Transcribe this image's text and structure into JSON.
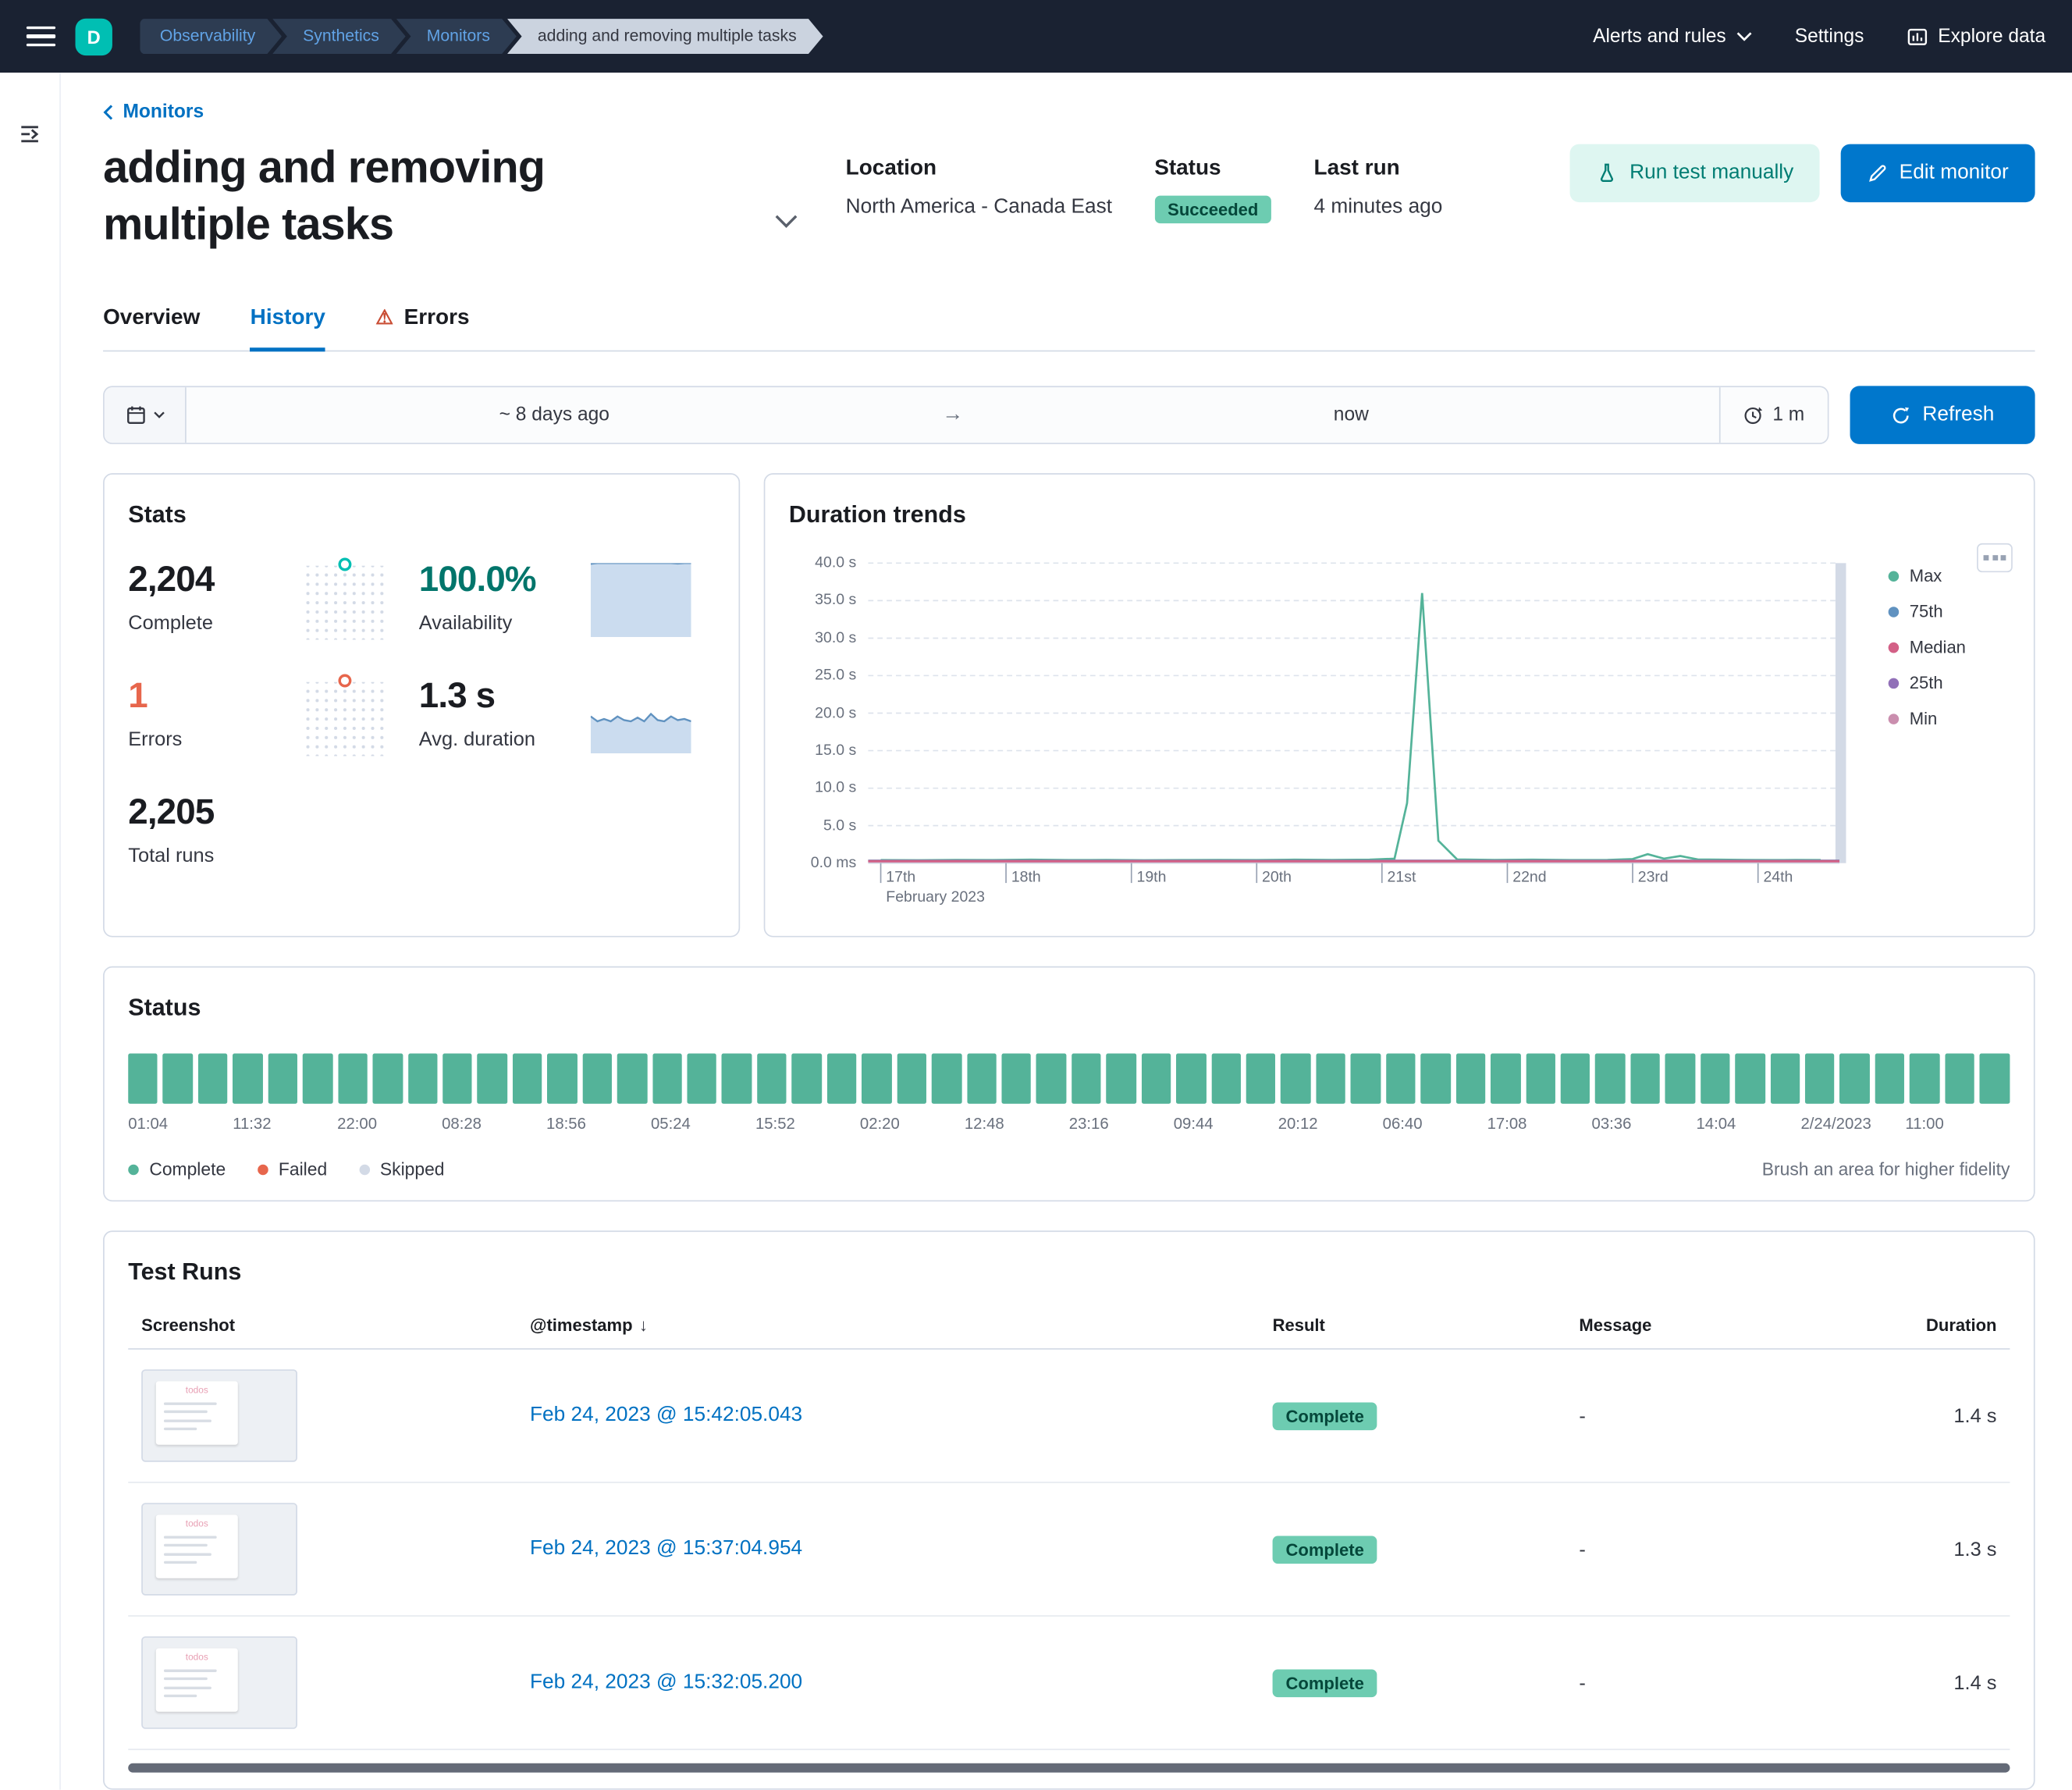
{
  "header": {
    "space_initial": "D",
    "breadcrumbs": [
      "Observability",
      "Synthetics",
      "Monitors",
      "adding and removing multiple tasks"
    ],
    "alerts_menu": "Alerts and rules",
    "settings": "Settings",
    "explore_data": "Explore data"
  },
  "monitor": {
    "back_link": "Monitors",
    "title": "adding and removing multiple tasks",
    "location_label": "Location",
    "location_value": "North America - Canada East",
    "status_label": "Status",
    "status_value": "Succeeded",
    "last_run_label": "Last run",
    "last_run_value": "4 minutes ago",
    "run_test_button": "Run test manually",
    "edit_button": "Edit monitor"
  },
  "tabs": [
    {
      "label": "Overview",
      "active": false,
      "warning": false
    },
    {
      "label": "History",
      "active": true,
      "warning": false
    },
    {
      "label": "Errors",
      "active": false,
      "warning": true
    }
  ],
  "datepicker": {
    "start": "~ 8 days ago",
    "end": "now",
    "refresh_interval": "1 m",
    "refresh_button": "Refresh"
  },
  "stats": {
    "title": "Stats",
    "complete": {
      "value": "2,204",
      "label": "Complete"
    },
    "availability": {
      "value": "100.0%",
      "label": "Availability"
    },
    "errors": {
      "value": "1",
      "label": "Errors"
    },
    "avg_duration": {
      "value": "1.3 s",
      "label": "Avg. duration"
    },
    "total_runs": {
      "value": "2,205",
      "label": "Total runs"
    }
  },
  "chart_data": [
    {
      "type": "line",
      "title": "Duration trends",
      "unit": "seconds",
      "ylim": [
        0,
        40
      ],
      "y_ticks": [
        "40.0 s",
        "35.0 s",
        "30.0 s",
        "25.0 s",
        "20.0 s",
        "15.0 s",
        "10.0 s",
        "5.0 s",
        "0.0 ms"
      ],
      "xlim": [
        16.9,
        24.65
      ],
      "x_ticks": [
        {
          "label": "17th",
          "day": 17
        },
        {
          "label": "18th",
          "day": 18
        },
        {
          "label": "19th",
          "day": 19
        },
        {
          "label": "20th",
          "day": 20
        },
        {
          "label": "21st",
          "day": 21
        },
        {
          "label": "22nd",
          "day": 22
        },
        {
          "label": "23rd",
          "day": 23
        },
        {
          "label": "24th",
          "day": 24
        }
      ],
      "x_subtitle": "February 2023",
      "legend_position": "right",
      "series": [
        {
          "name": "Max",
          "color": "#54B399",
          "x": [
            17.0,
            17.3,
            17.6,
            17.9,
            18.2,
            18.5,
            18.8,
            19.1,
            19.4,
            19.7,
            20.0,
            20.3,
            20.6,
            20.9,
            21.1,
            21.2,
            21.32,
            21.45,
            21.6,
            21.9,
            22.2,
            22.5,
            22.8,
            23.0,
            23.12,
            23.25,
            23.38,
            23.52,
            23.7,
            23.9,
            24.1,
            24.3,
            24.5
          ],
          "y": [
            0.4,
            0.38,
            0.42,
            0.4,
            0.45,
            0.4,
            0.42,
            0.38,
            0.4,
            0.42,
            0.4,
            0.45,
            0.42,
            0.46,
            0.6,
            8,
            36,
            3,
            0.5,
            0.42,
            0.46,
            0.4,
            0.42,
            0.55,
            1.2,
            0.6,
            0.95,
            0.5,
            0.45,
            0.42,
            0.4,
            0.42,
            0.4
          ]
        },
        {
          "name": "75th",
          "color": "#6092C0",
          "const": 0.33
        },
        {
          "name": "Median",
          "color": "#D36086",
          "const": 0.28
        },
        {
          "name": "25th",
          "color": "#9170B8",
          "const": 0.24
        },
        {
          "name": "Min",
          "color": "#CA8EAE",
          "const": 0.2
        }
      ]
    },
    {
      "type": "bar",
      "title": "Status",
      "description": "Monitor check status buckets over ~8 days; every bucket is complete (green)",
      "bar_count": 54,
      "bar_status": "complete",
      "categories": [
        "01:04",
        "11:32",
        "22:00",
        "08:28",
        "18:56",
        "05:24",
        "15:52",
        "02:20",
        "12:48",
        "23:16",
        "09:44",
        "20:12",
        "06:40",
        "17:08",
        "03:36",
        "14:04",
        "2/24/2023",
        "11:00"
      ],
      "legend": [
        "Complete",
        "Failed",
        "Skipped"
      ],
      "hint": "Brush an area for higher fidelity"
    },
    {
      "type": "area",
      "title": "Availability sparkline",
      "ylim": [
        0,
        100
      ],
      "values": [
        99,
        100,
        100,
        100,
        100,
        100,
        100,
        100,
        100,
        100,
        100,
        100,
        100,
        99.2,
        100,
        100
      ]
    },
    {
      "type": "area",
      "title": "Avg. duration sparkline",
      "ylim": [
        0,
        3
      ],
      "values": [
        1.5,
        1.3,
        1.4,
        1.3,
        1.5,
        1.35,
        1.3,
        1.45,
        1.3,
        1.6,
        1.35,
        1.3,
        1.5,
        1.35,
        1.4,
        1.3
      ]
    }
  ],
  "test_runs": {
    "title": "Test Runs",
    "columns": [
      "Screenshot",
      "@timestamp",
      "Result",
      "Message",
      "Duration"
    ],
    "rows": [
      {
        "timestamp": "Feb 24, 2023 @ 15:42:05.043",
        "result": "Complete",
        "message": "-",
        "duration": "1.4 s"
      },
      {
        "timestamp": "Feb 24, 2023 @ 15:37:04.954",
        "result": "Complete",
        "message": "-",
        "duration": "1.3 s"
      },
      {
        "timestamp": "Feb 24, 2023 @ 15:32:05.200",
        "result": "Complete",
        "message": "-",
        "duration": "1.4 s"
      }
    ],
    "thumbnail_label": "todos"
  },
  "colors": {
    "primary": "#0077CC",
    "link": "#0071C2",
    "success_badge_bg": "#6DCCB1",
    "danger": "#E7664C",
    "vis_green": "#54B399",
    "vis_blue": "#6092C0",
    "vis_pink": "#D36086",
    "vis_purple": "#9170B8",
    "vis_rose": "#CA8EAE",
    "header_bg": "#1A2232"
  }
}
